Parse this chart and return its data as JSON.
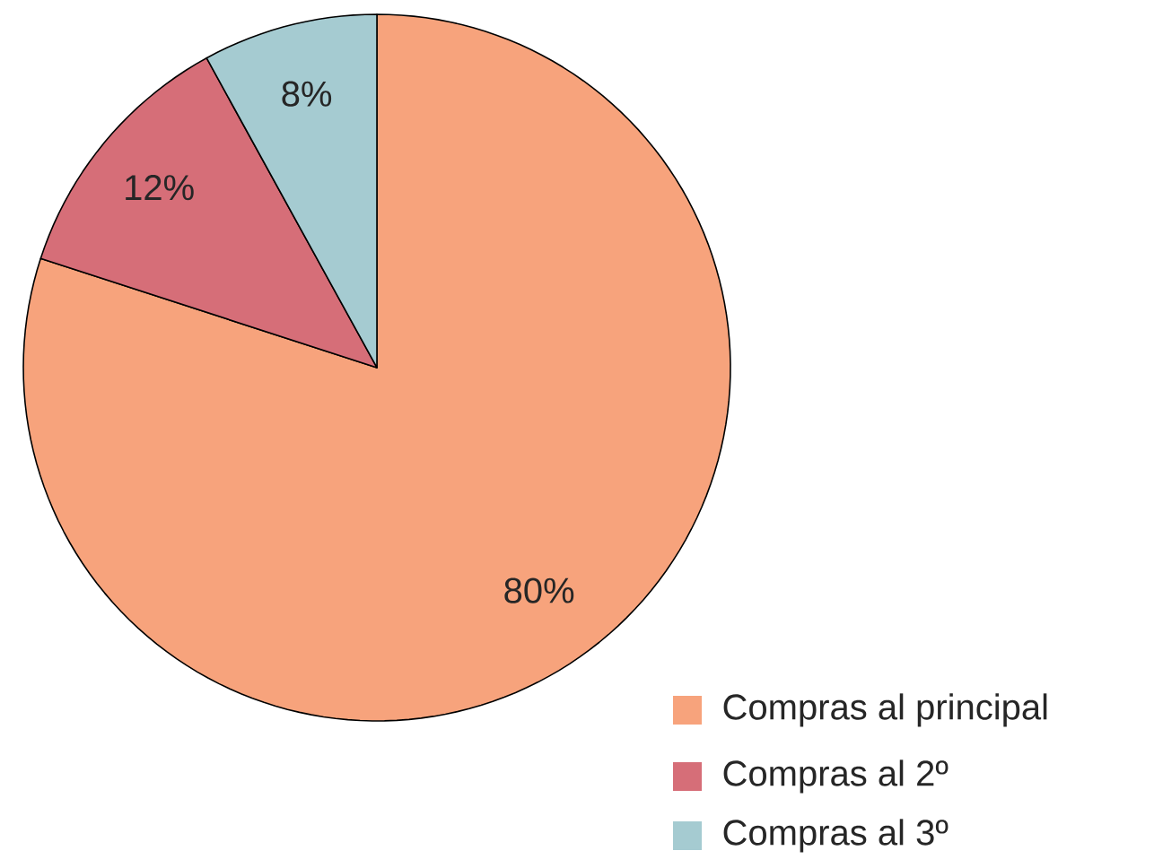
{
  "chart_data": {
    "type": "pie",
    "categories": [
      "Compras al principal",
      "Compras al 2º",
      "Compras al 3º"
    ],
    "values": [
      80,
      12,
      8
    ],
    "value_labels": [
      "80%",
      "12%",
      "8%"
    ],
    "colors": [
      "#f7a37c",
      "#d66e78",
      "#a5cbd1"
    ],
    "legend": "bottom right"
  }
}
